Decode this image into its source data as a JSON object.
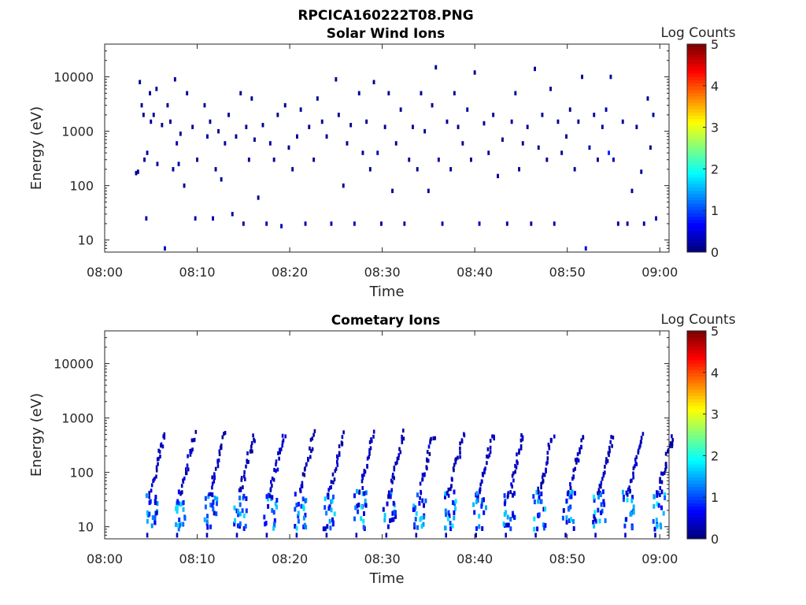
{
  "figure": {
    "filename": "RPCICA160222T08.PNG"
  },
  "chart_data": [
    {
      "type": "heatmap",
      "title": "Solar Wind Ions",
      "xlabel": "Time",
      "ylabel": "Energy (eV)",
      "colorbar_label": "Log Counts",
      "x_ticks": [
        "08:00",
        "08:10",
        "08:20",
        "08:30",
        "08:40",
        "08:50",
        "09:00"
      ],
      "y_ticks": [
        "10",
        "100",
        "1000",
        "10000"
      ],
      "y_scale": "log",
      "ylim": [
        6,
        40000
      ],
      "xlim_minutes": [
        0,
        61
      ],
      "clim": [
        0,
        5
      ],
      "colorbar_ticks": [
        "0",
        "1",
        "2",
        "3",
        "4",
        "5"
      ],
      "colormap": "jet",
      "description": "Sparse low-count (log counts ~0-0.5) detections scattered across energies 10-20000 eV; a faint cluster near 15-30 eV throughout the hour.",
      "points": [
        [
          3.4,
          170,
          0.1
        ],
        [
          3.6,
          180,
          0.1
        ],
        [
          3.8,
          8000,
          0.1
        ],
        [
          4.0,
          3000,
          0.1
        ],
        [
          4.2,
          2000,
          0.1
        ],
        [
          4.3,
          300,
          0.1
        ],
        [
          4.5,
          25,
          0.2
        ],
        [
          4.6,
          400,
          0.1
        ],
        [
          4.9,
          5000,
          0.1
        ],
        [
          5.0,
          1500,
          0.1
        ],
        [
          5.3,
          2000,
          0.1
        ],
        [
          5.6,
          6000,
          0.1
        ],
        [
          5.7,
          250,
          0.2
        ],
        [
          6.2,
          1300,
          0.1
        ],
        [
          6.5,
          7,
          0.3
        ],
        [
          6.8,
          3000,
          0.1
        ],
        [
          7.1,
          1500,
          0.1
        ],
        [
          7.4,
          200,
          0.2
        ],
        [
          7.6,
          9000,
          0.2
        ],
        [
          7.8,
          600,
          0.3
        ],
        [
          8.0,
          250,
          0.2
        ],
        [
          8.2,
          900,
          0.1
        ],
        [
          8.6,
          100,
          0.1
        ],
        [
          8.9,
          5000,
          0.1
        ],
        [
          9.5,
          1200,
          0.1
        ],
        [
          9.8,
          25,
          0.2
        ],
        [
          10.0,
          300,
          0.1
        ],
        [
          10.8,
          3000,
          0.1
        ],
        [
          11.1,
          800,
          0.2
        ],
        [
          11.4,
          1500,
          0.1
        ],
        [
          11.7,
          25,
          0.2
        ],
        [
          12.0,
          200,
          0.1
        ],
        [
          12.3,
          1000,
          0.1
        ],
        [
          12.6,
          130,
          0.1
        ],
        [
          13.0,
          600,
          0.2
        ],
        [
          13.4,
          2000,
          0.1
        ],
        [
          13.8,
          30,
          0.2
        ],
        [
          14.2,
          800,
          0.1
        ],
        [
          14.7,
          5000,
          0.1
        ],
        [
          15.0,
          20,
          0.2
        ],
        [
          15.3,
          1200,
          0.1
        ],
        [
          15.6,
          300,
          0.1
        ],
        [
          15.9,
          4000,
          0.1
        ],
        [
          16.2,
          700,
          0.1
        ],
        [
          16.6,
          60,
          0.1
        ],
        [
          17.1,
          1300,
          0.1
        ],
        [
          17.5,
          20,
          0.3
        ],
        [
          17.9,
          600,
          0.2
        ],
        [
          18.3,
          300,
          0.1
        ],
        [
          18.7,
          2000,
          0.1
        ],
        [
          19.1,
          18,
          0.3
        ],
        [
          19.5,
          3000,
          0.1
        ],
        [
          19.9,
          500,
          0.1
        ],
        [
          20.3,
          200,
          0.1
        ],
        [
          20.8,
          800,
          0.1
        ],
        [
          21.2,
          2500,
          0.1
        ],
        [
          21.7,
          20,
          0.2
        ],
        [
          22.1,
          1200,
          0.1
        ],
        [
          22.6,
          300,
          0.1
        ],
        [
          23.0,
          4000,
          0.1
        ],
        [
          23.5,
          1500,
          0.1
        ],
        [
          24.0,
          800,
          0.1
        ],
        [
          24.5,
          20,
          0.3
        ],
        [
          25.0,
          9000,
          0.1
        ],
        [
          25.3,
          2000,
          0.1
        ],
        [
          25.8,
          100,
          0.1
        ],
        [
          26.2,
          600,
          0.1
        ],
        [
          26.6,
          1300,
          0.1
        ],
        [
          27.0,
          20,
          0.3
        ],
        [
          27.5,
          5000,
          0.1
        ],
        [
          27.9,
          400,
          0.1
        ],
        [
          28.3,
          1500,
          0.1
        ],
        [
          28.7,
          200,
          0.1
        ],
        [
          29.1,
          8000,
          0.1
        ],
        [
          29.5,
          400,
          0.3
        ],
        [
          29.9,
          20,
          0.2
        ],
        [
          30.3,
          1200,
          0.1
        ],
        [
          30.7,
          5000,
          0.1
        ],
        [
          31.1,
          80,
          0.1
        ],
        [
          31.5,
          600,
          0.1
        ],
        [
          32.0,
          2500,
          0.1
        ],
        [
          32.4,
          20,
          0.2
        ],
        [
          32.9,
          300,
          0.1
        ],
        [
          33.3,
          1200,
          0.1
        ],
        [
          33.8,
          200,
          0.1
        ],
        [
          34.2,
          5000,
          0.1
        ],
        [
          34.6,
          1000,
          0.1
        ],
        [
          35.0,
          80,
          0.1
        ],
        [
          35.4,
          3000,
          0.1
        ],
        [
          35.8,
          15000,
          0.1
        ],
        [
          36.1,
          300,
          0.2
        ],
        [
          36.5,
          20,
          0.3
        ],
        [
          37.0,
          1500,
          0.1
        ],
        [
          37.4,
          200,
          0.1
        ],
        [
          37.8,
          5000,
          0.1
        ],
        [
          38.2,
          1200,
          0.1
        ],
        [
          38.7,
          600,
          0.1
        ],
        [
          39.2,
          2500,
          0.1
        ],
        [
          39.6,
          300,
          0.1
        ],
        [
          40.0,
          12000,
          0.1
        ],
        [
          40.5,
          20,
          0.3
        ],
        [
          41.0,
          1400,
          0.1
        ],
        [
          41.5,
          400,
          0.1
        ],
        [
          42.0,
          2000,
          0.1
        ],
        [
          42.5,
          150,
          0.1
        ],
        [
          43.0,
          700,
          0.1
        ],
        [
          43.5,
          20,
          0.3
        ],
        [
          44.0,
          1500,
          0.1
        ],
        [
          44.4,
          5000,
          0.1
        ],
        [
          44.8,
          200,
          0.1
        ],
        [
          45.2,
          600,
          0.1
        ],
        [
          45.7,
          1200,
          0.1
        ],
        [
          46.1,
          20,
          0.2
        ],
        [
          46.5,
          14000,
          0.1
        ],
        [
          46.9,
          500,
          0.1
        ],
        [
          47.3,
          2000,
          0.1
        ],
        [
          47.8,
          300,
          0.1
        ],
        [
          48.2,
          6000,
          0.1
        ],
        [
          48.6,
          20,
          0.3
        ],
        [
          49.0,
          1500,
          0.1
        ],
        [
          49.4,
          400,
          0.1
        ],
        [
          49.9,
          800,
          0.1
        ],
        [
          50.3,
          2500,
          0.1
        ],
        [
          50.8,
          200,
          0.1
        ],
        [
          51.2,
          1500,
          0.1
        ],
        [
          51.6,
          10000,
          0.1
        ],
        [
          52.0,
          7,
          0.4
        ],
        [
          52.4,
          500,
          0.2
        ],
        [
          52.9,
          2000,
          0.1
        ],
        [
          53.3,
          300,
          0.1
        ],
        [
          53.8,
          1200,
          0.1
        ],
        [
          54.2,
          2500,
          0.2
        ],
        [
          54.5,
          400,
          0.8
        ],
        [
          54.7,
          10000,
          0.2
        ],
        [
          55.0,
          300,
          0.2
        ],
        [
          55.5,
          20,
          0.2
        ],
        [
          56.0,
          1500,
          0.1
        ],
        [
          56.5,
          20,
          0.2
        ],
        [
          57.0,
          80,
          0.1
        ],
        [
          57.5,
          1200,
          0.1
        ],
        [
          58.0,
          180,
          0.1
        ],
        [
          58.3,
          20,
          0.2
        ],
        [
          58.7,
          4000,
          0.1
        ],
        [
          59.0,
          500,
          0.1
        ],
        [
          59.3,
          2000,
          0.1
        ],
        [
          59.6,
          25,
          0.3
        ]
      ]
    },
    {
      "type": "heatmap",
      "title": "Cometary Ions",
      "xlabel": "Time",
      "ylabel": "Energy (eV)",
      "colorbar_label": "Log Counts",
      "x_ticks": [
        "08:00",
        "08:10",
        "08:20",
        "08:30",
        "08:40",
        "08:50",
        "09:00"
      ],
      "y_ticks": [
        "10",
        "100",
        "1000",
        "10000"
      ],
      "y_scale": "log",
      "ylim": [
        6,
        40000
      ],
      "xlim_minutes": [
        0,
        61
      ],
      "clim": [
        0,
        5
      ],
      "colorbar_ticks": [
        "0",
        "1",
        "2",
        "3",
        "4",
        "5"
      ],
      "colormap": "jet",
      "description": "Periodic energy sweeps roughly every 3.2 minutes, each rising from ~10 eV to ~500 eV, with strongest counts (log counts up to ~1.8) at 10-40 eV.",
      "sweep_period_minutes": 3.23,
      "first_sweep_start_minutes": 4.3,
      "sweep_count": 18,
      "sweep_energy_range_ev": [
        10,
        500
      ],
      "peak_log_counts": 1.8,
      "peak_energy_range_ev": [
        10,
        40
      ]
    }
  ]
}
